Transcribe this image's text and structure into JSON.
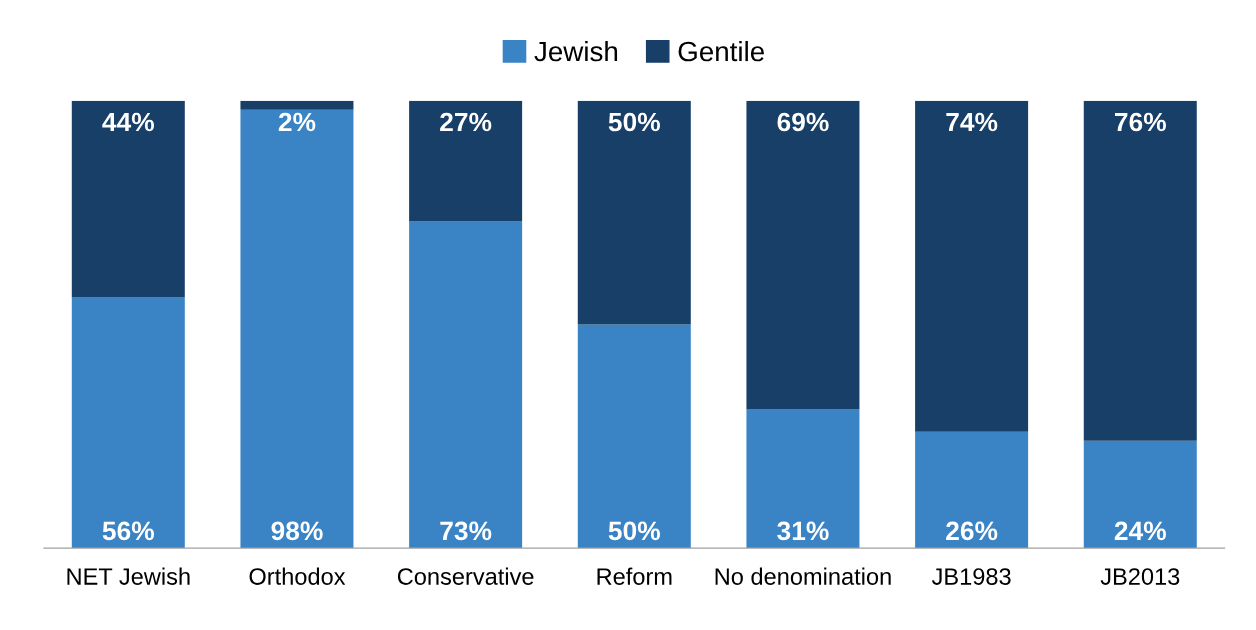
{
  "chart_data": {
    "type": "bar",
    "stacked": true,
    "legend": "top",
    "categories": [
      "NET Jewish",
      "Orthodox",
      "Conservative",
      "Reform",
      "No denomination",
      "JB1983",
      "JB2013"
    ],
    "series": [
      {
        "name": "Jewish",
        "color": "#3a84c6",
        "values": [
          56,
          98,
          73,
          50,
          31,
          26,
          24
        ],
        "value_labels": [
          "56%",
          "98%",
          "73%",
          "50%",
          "31%",
          "26%",
          "24%"
        ]
      },
      {
        "name": "Gentile",
        "color": "#173f68",
        "values": [
          44,
          2,
          27,
          50,
          69,
          74,
          76
        ],
        "value_labels": [
          "44%",
          "2%",
          "27%",
          "50%",
          "69%",
          "74%",
          "76%"
        ]
      }
    ]
  }
}
